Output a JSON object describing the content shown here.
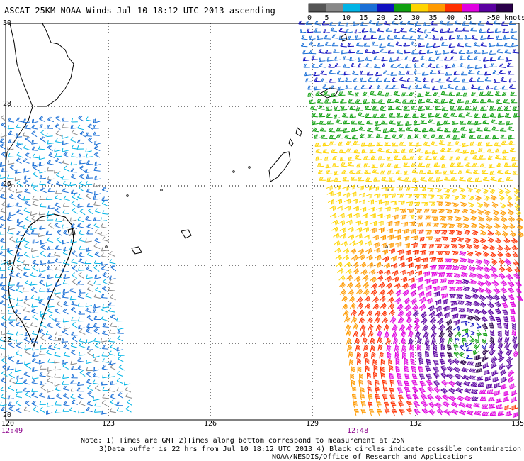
{
  "title": "ASCAT 25KM NOAA Winds Jul 10 18:12 UTC 2013 ascending",
  "legend": {
    "labels": [
      "0",
      "5",
      "10",
      "15",
      "20",
      "25",
      "30",
      "35",
      "40",
      "45",
      ">50 knots"
    ],
    "colors": [
      "#555555",
      "#888888",
      "#00b4e6",
      "#1a6fd6",
      "#1010c0",
      "#10a010",
      "#ffd400",
      "#ff9a00",
      "#ff3000",
      "#e000e0",
      "#5a00a0",
      "#2a004a"
    ]
  },
  "axes": {
    "lat_labels": [
      "30",
      "28",
      "26",
      "24",
      "22",
      "20"
    ],
    "lon_labels": [
      "120",
      "123",
      "126",
      "129",
      "132",
      "135"
    ]
  },
  "pass_times": [
    "12:49",
    "12:48"
  ],
  "notes": {
    "line1": "Note: 1) Times are GMT 2)Times along bottom correspond to measurement at 25N",
    "line2": "3)Data buffer is 22 hrs from Jul 10 18:12 UTC 2013 4) Black circles indicate possible contamination",
    "line3": "NOAA/NESDIS/Office of Research and Applications"
  }
}
